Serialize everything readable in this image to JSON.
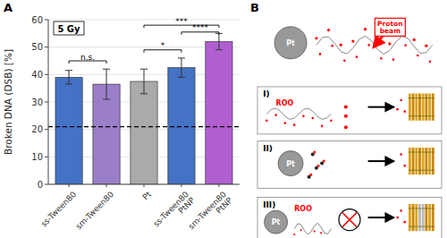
{
  "chart_data": {
    "type": "bar",
    "categories": [
      "ss-Tween80",
      "sm-Tween80",
      "Pt",
      "ss-Tween80\nPtNP",
      "sm-Tween80\nPtNP"
    ],
    "values": [
      39.0,
      36.5,
      37.5,
      42.5,
      52.0
    ],
    "errors": [
      2.5,
      5.5,
      4.5,
      3.5,
      3.0
    ],
    "colors": [
      "#4472C4",
      "#9B7EC8",
      "#AAAAAA",
      "#4472C4",
      "#B05FD0"
    ],
    "ylabel": "Broken DNA (DSB) [%]",
    "ylim": [
      0,
      60
    ],
    "yticks": [
      0,
      10,
      20,
      30,
      40,
      50,
      60
    ],
    "hline": 21,
    "inset_label": "5 Gy",
    "panel_labels": [
      "A",
      "B"
    ],
    "brackets": [
      {
        "x1": 0,
        "x2": 1,
        "y": 45,
        "label": "n.s."
      },
      {
        "x1": 2,
        "x2": 3,
        "y": 49,
        "label": "*"
      },
      {
        "x1": 3,
        "x2": 4,
        "y": 55.5,
        "label": "****"
      },
      {
        "x1": 2,
        "x2": 4,
        "y": 58,
        "label": "***"
      }
    ],
    "diagram_texts": [
      "Proton\nbeam",
      "Pt",
      "I)",
      "II)",
      "III)",
      "ROO",
      "Pt",
      "ROO",
      "Pt"
    ]
  }
}
